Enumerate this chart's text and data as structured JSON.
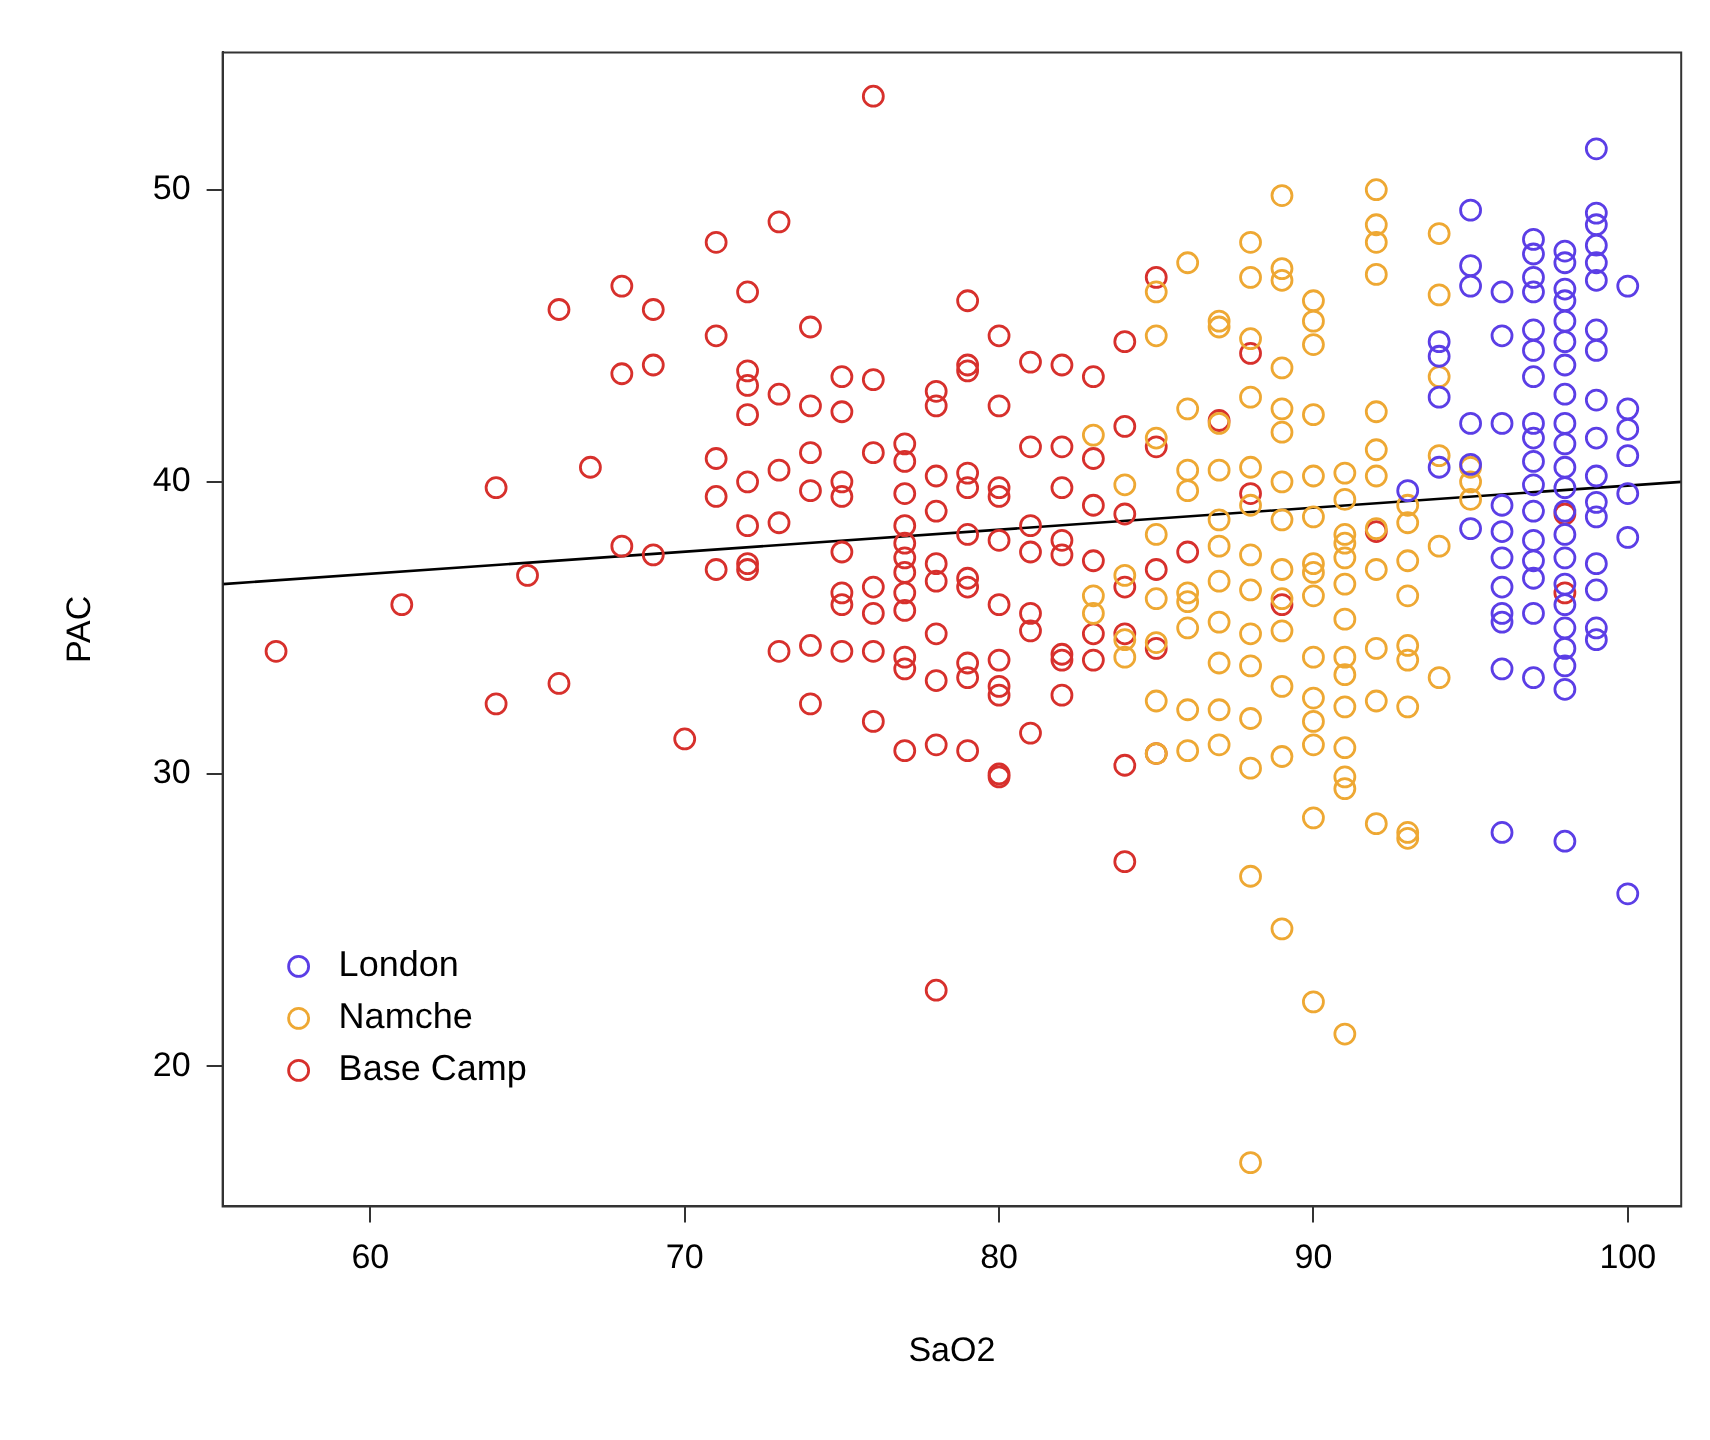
{
  "chart_data": {
    "type": "scatter",
    "xlabel": "SaO2",
    "ylabel": "PAC",
    "xlim": [
      55.3,
      101.7
    ],
    "ylim": [
      15.2,
      54.7
    ],
    "xticks": [
      60,
      70,
      80,
      90,
      100
    ],
    "yticks": [
      20,
      30,
      40,
      50
    ],
    "grid": false,
    "legend": "bottom left",
    "marker": "circle",
    "series": [
      {
        "name": "London",
        "color": "#5b3ee6",
        "x": [
          93,
          94,
          94,
          94,
          94,
          95,
          95,
          95,
          95,
          95,
          95,
          96,
          96,
          96,
          96,
          96,
          96,
          96,
          96,
          96,
          96,
          96,
          97,
          97,
          97,
          97,
          97,
          97,
          97,
          97,
          97,
          97,
          97,
          97,
          97,
          97,
          97,
          97,
          97,
          98,
          98,
          98,
          98,
          98,
          98,
          98,
          98,
          98,
          98,
          98,
          98,
          98,
          98,
          98,
          98,
          98,
          98,
          98,
          98,
          98,
          98,
          99,
          99,
          99,
          99,
          99,
          99,
          99,
          99,
          99,
          99,
          99,
          99,
          99,
          99,
          99,
          99,
          99,
          100,
          100,
          100,
          100,
          100,
          100,
          100
        ],
        "values": [
          39.7,
          44.8,
          44.3,
          42.9,
          40.5,
          49.3,
          46.7,
          47.4,
          42.0,
          40.6,
          38.4,
          46.5,
          45.0,
          42.0,
          39.2,
          38.3,
          37.4,
          36.4,
          35.5,
          35.2,
          33.6,
          28.0,
          48.3,
          47.8,
          47.0,
          46.5,
          45.2,
          44.5,
          43.6,
          42.0,
          41.5,
          40.7,
          39.9,
          39.0,
          38.0,
          37.3,
          36.7,
          35.5,
          33.3,
          47.9,
          47.5,
          46.6,
          46.2,
          45.5,
          44.8,
          44.0,
          43.0,
          42.0,
          41.3,
          40.5,
          39.8,
          39.0,
          38.2,
          37.4,
          36.5,
          35.8,
          35.0,
          34.3,
          33.7,
          32.9,
          27.7,
          51.4,
          49.2,
          48.8,
          48.1,
          47.5,
          46.9,
          45.2,
          44.5,
          42.8,
          41.5,
          40.2,
          39.3,
          38.8,
          37.2,
          36.3,
          35.0,
          34.6,
          46.7,
          42.5,
          41.8,
          40.9,
          39.6,
          38.1,
          25.9
        ]
      },
      {
        "name": "Namche",
        "color": "#eea833",
        "x": [
          83,
          83,
          83,
          84,
          84,
          84,
          84,
          85,
          85,
          85,
          85,
          85,
          85,
          85,
          85,
          86,
          86,
          86,
          86,
          86,
          86,
          86,
          86,
          86,
          87,
          87,
          87,
          87,
          87,
          87,
          87,
          87,
          87,
          87,
          87,
          88,
          88,
          88,
          88,
          88,
          88,
          88,
          88,
          88,
          88,
          88,
          88,
          88,
          88,
          89,
          89,
          89,
          89,
          89,
          89,
          89,
          89,
          89,
          89,
          89,
          89,
          89,
          89,
          90,
          90,
          90,
          90,
          90,
          90,
          90,
          90,
          90,
          90,
          90,
          90,
          90,
          90,
          90,
          91,
          91,
          91,
          91,
          91,
          91,
          91,
          91,
          91,
          91,
          91,
          91,
          91,
          91,
          92,
          92,
          92,
          92,
          92,
          92,
          92,
          92,
          92,
          92,
          92,
          92,
          93,
          93,
          93,
          93,
          93,
          93,
          93,
          93,
          93,
          94,
          94,
          94,
          94,
          94,
          94,
          95,
          95,
          95
        ],
        "values": [
          41.6,
          36.1,
          35.5,
          39.9,
          36.8,
          34.6,
          34.0,
          46.5,
          45.0,
          41.5,
          38.2,
          36.0,
          34.5,
          32.5,
          30.7,
          47.5,
          42.5,
          40.4,
          39.7,
          36.2,
          35.9,
          35.0,
          32.2,
          30.8,
          45.5,
          45.3,
          42.0,
          40.4,
          38.7,
          37.8,
          36.6,
          35.2,
          33.8,
          32.2,
          31.0,
          48.2,
          47.0,
          44.9,
          42.9,
          40.5,
          39.2,
          37.5,
          36.3,
          34.8,
          33.7,
          31.9,
          30.2,
          26.5,
          16.7,
          49.8,
          47.3,
          46.9,
          43.9,
          42.5,
          41.7,
          40.0,
          38.7,
          37.0,
          36.0,
          34.9,
          33.0,
          30.6,
          24.7,
          46.2,
          45.5,
          44.7,
          42.3,
          40.2,
          38.8,
          37.2,
          36.9,
          36.1,
          34.0,
          32.6,
          31.8,
          31.0,
          28.5,
          22.2,
          40.3,
          39.4,
          38.2,
          37.9,
          37.4,
          36.5,
          35.3,
          34.0,
          33.4,
          32.3,
          30.9,
          29.9,
          29.5,
          21.1,
          50.0,
          48.8,
          48.2,
          47.1,
          42.4,
          41.1,
          40.2,
          38.4,
          37.0,
          34.3,
          32.5,
          28.3,
          39.2,
          38.6,
          37.3,
          36.1,
          34.4,
          33.9,
          32.3,
          28.0,
          27.8,
          48.5,
          46.4,
          43.6,
          40.9,
          37.8,
          33.3,
          40.5,
          40.0,
          39.4
        ]
      },
      {
        "name": "Base Camp",
        "color": "#d7302c",
        "x": [
          57,
          61,
          64,
          64,
          65,
          66,
          66,
          67,
          68,
          68,
          68,
          69,
          69,
          69,
          70,
          71,
          71,
          71,
          71,
          71,
          72,
          72,
          72,
          72,
          72,
          72,
          72,
          72,
          73,
          73,
          73,
          73,
          73,
          74,
          74,
          74,
          74,
          74,
          74,
          75,
          75,
          75,
          75,
          75,
          75,
          75,
          75,
          76,
          76,
          76,
          76,
          76,
          76,
          76,
          77,
          77,
          77,
          77,
          77,
          77,
          77,
          77,
          77,
          77,
          77,
          77,
          78,
          78,
          78,
          78,
          78,
          78,
          78,
          78,
          78,
          78,
          79,
          79,
          79,
          79,
          79,
          79,
          79,
          79,
          79,
          79,
          79,
          80,
          80,
          80,
          80,
          80,
          80,
          80,
          80,
          80,
          80,
          80,
          81,
          81,
          81,
          81,
          81,
          81,
          81,
          82,
          82,
          82,
          82,
          82,
          82,
          82,
          82,
          83,
          83,
          83,
          83,
          83,
          83,
          84,
          84,
          84,
          84,
          84,
          84,
          84,
          85,
          85,
          85,
          85,
          85,
          86,
          87,
          88,
          88,
          89,
          92,
          98,
          98
        ],
        "values": [
          34.2,
          35.8,
          39.8,
          32.4,
          36.8,
          45.9,
          33.1,
          40.5,
          46.7,
          43.7,
          37.8,
          45.9,
          44.0,
          37.5,
          31.2,
          48.2,
          45.0,
          40.8,
          39.5,
          37.0,
          46.5,
          43.8,
          43.3,
          42.3,
          40.0,
          38.5,
          37.2,
          37.0,
          48.9,
          43.0,
          40.4,
          38.6,
          34.2,
          45.3,
          42.6,
          41.0,
          39.7,
          34.4,
          32.4,
          43.6,
          42.4,
          40.0,
          39.5,
          37.6,
          36.2,
          35.8,
          34.2,
          53.2,
          43.5,
          41.0,
          36.4,
          35.5,
          34.2,
          31.8,
          41.3,
          40.7,
          39.6,
          38.5,
          37.9,
          37.4,
          36.9,
          36.2,
          35.6,
          34.0,
          33.6,
          30.8,
          43.1,
          42.6,
          40.2,
          39.0,
          37.2,
          36.6,
          34.8,
          33.2,
          31.0,
          22.6,
          46.2,
          44.0,
          43.8,
          40.3,
          39.8,
          38.2,
          36.7,
          36.4,
          33.8,
          33.3,
          30.8,
          45.0,
          42.6,
          39.8,
          39.5,
          38.0,
          35.8,
          33.9,
          33.0,
          32.7,
          30.0,
          29.9,
          44.1,
          41.2,
          38.5,
          37.6,
          35.5,
          34.9,
          31.4,
          44.0,
          41.2,
          39.8,
          38.0,
          37.5,
          34.1,
          33.9,
          32.7,
          43.6,
          40.8,
          39.2,
          37.3,
          34.8,
          33.9,
          44.8,
          41.9,
          38.9,
          36.4,
          34.8,
          30.3,
          27.0,
          47.0,
          41.2,
          37.0,
          34.3,
          30.7,
          37.6,
          42.1,
          44.4,
          39.6,
          35.8,
          38.3,
          36.2,
          38.9
        ]
      },
      {
        "type": "line",
        "color": "#000000",
        "marker": "none",
        "x": [
          55.3,
          101.7
        ],
        "values": [
          36.5,
          40.0
        ]
      }
    ]
  }
}
